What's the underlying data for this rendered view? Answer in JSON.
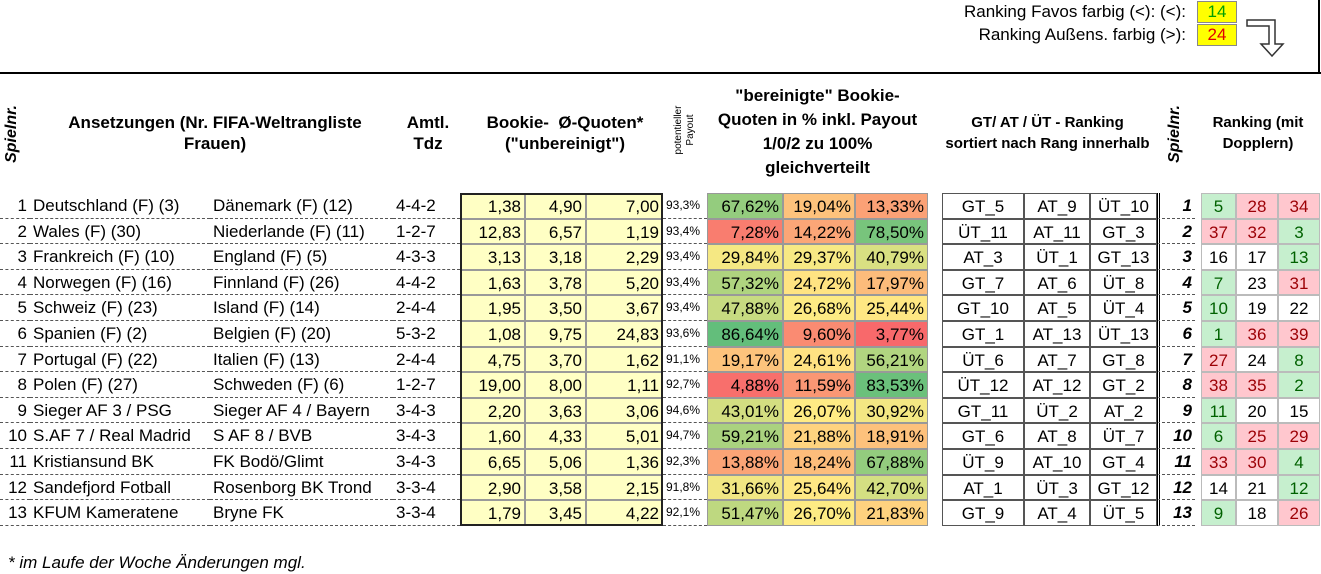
{
  "header": {
    "favos_label": "Ranking Favos farbig (<):  (<):",
    "favos_value": "14",
    "aussens_label": "Ranking Außens. farbig (>):",
    "aussens_value": "24"
  },
  "table": {
    "headers": {
      "nr": "Spielnr.",
      "matches": "Ansetzungen (Nr. FIFA-Weltrangliste Frauen)",
      "tdz": "Amtl. Tdz",
      "quotes": "Bookie-  Ø-Quoten* (\"unbereinigt\")",
      "payout": "potentieller Payout",
      "adjusted": "\"bereinigte\" Bookie-Quoten in % inkl. Payout 1/0/2 zu 100% gleichverteilt",
      "ranking": "GT/ AT / ÜT - Ranking sortiert nach Rang innerhalb",
      "nr2": "Spielnr.",
      "doubles": "Ranking (mit Dopplern)"
    },
    "rows": [
      [
        "1",
        "Deutschland (F) (3)",
        "Dänemark (F) (12)",
        "4-4-2",
        "1,38",
        "4,90",
        "7,00",
        "93,3%",
        "67,62%",
        "19,04%",
        "13,33%",
        "GT_5",
        "AT_9",
        "ÜT_10",
        "1",
        "5",
        "28",
        "34"
      ],
      [
        "2",
        "Wales (F) (30)",
        "Niederlande (F) (11)",
        "1-2-7",
        "12,83",
        "6,57",
        "1,19",
        "93,4%",
        "7,28%",
        "14,22%",
        "78,50%",
        "ÜT_11",
        "AT_11",
        "GT_3",
        "2",
        "37",
        "32",
        "3"
      ],
      [
        "3",
        "Frankreich (F) (10)",
        "England (F) (5)",
        "4-3-3",
        "3,13",
        "3,18",
        "2,29",
        "93,4%",
        "29,84%",
        "29,37%",
        "40,79%",
        "AT_3",
        "ÜT_1",
        "GT_13",
        "3",
        "16",
        "17",
        "13"
      ],
      [
        "4",
        "Norwegen (F) (16)",
        "Finnland (F) (26)",
        "4-4-2",
        "1,63",
        "3,78",
        "5,20",
        "93,4%",
        "57,32%",
        "24,72%",
        "17,97%",
        "GT_7",
        "AT_6",
        "ÜT_8",
        "4",
        "7",
        "23",
        "31"
      ],
      [
        "5",
        "Schweiz (F) (23)",
        "Island (F) (14)",
        "2-4-4",
        "1,95",
        "3,50",
        "3,67",
        "93,4%",
        "47,88%",
        "26,68%",
        "25,44%",
        "GT_10",
        "AT_5",
        "ÜT_4",
        "5",
        "10",
        "19",
        "22"
      ],
      [
        "6",
        "Spanien (F) (2)",
        "Belgien (F) (20)",
        "5-3-2",
        "1,08",
        "9,75",
        "24,83",
        "93,6%",
        "86,64%",
        "9,60%",
        "3,77%",
        "GT_1",
        "AT_13",
        "ÜT_13",
        "6",
        "1",
        "36",
        "39"
      ],
      [
        "7",
        "Portugal (F) (22)",
        "Italien (F) (13)",
        "2-4-4",
        "4,75",
        "3,70",
        "1,62",
        "91,1%",
        "19,17%",
        "24,61%",
        "56,21%",
        "ÜT_6",
        "AT_7",
        "GT_8",
        "7",
        "27",
        "24",
        "8"
      ],
      [
        "8",
        "Polen (F) (27)",
        "Schweden (F) (6)",
        "1-2-7",
        "19,00",
        "8,00",
        "1,11",
        "92,7%",
        "4,88%",
        "11,59%",
        "83,53%",
        "ÜT_12",
        "AT_12",
        "GT_2",
        "8",
        "38",
        "35",
        "2"
      ],
      [
        "9",
        "Sieger AF 3 / PSG",
        "Sieger AF 4 / Bayern",
        "3-4-3",
        "2,20",
        "3,63",
        "3,06",
        "94,6%",
        "43,01%",
        "26,07%",
        "30,92%",
        "GT_11",
        "ÜT_2",
        "AT_2",
        "9",
        "11",
        "20",
        "15"
      ],
      [
        "10",
        "S.AF 7 / Real Madrid",
        "S AF 8 / BVB",
        "3-4-3",
        "1,60",
        "4,33",
        "5,01",
        "94,7%",
        "59,21%",
        "21,88%",
        "18,91%",
        "GT_6",
        "AT_8",
        "ÜT_7",
        "10",
        "6",
        "25",
        "29"
      ],
      [
        "11",
        "Kristiansund BK",
        "FK Bodö/Glimt",
        "3-4-3",
        "6,65",
        "5,06",
        "1,36",
        "92,3%",
        "13,88%",
        "18,24%",
        "67,88%",
        "ÜT_9",
        "AT_10",
        "GT_4",
        "11",
        "33",
        "30",
        "4"
      ],
      [
        "12",
        "Sandefjord Fotball",
        "Rosenborg BK Trond",
        "3-3-4",
        "2,90",
        "3,58",
        "2,15",
        "91,8%",
        "31,66%",
        "25,64%",
        "42,70%",
        "AT_1",
        "ÜT_3",
        "GT_12",
        "12",
        "14",
        "21",
        "12"
      ],
      [
        "13",
        "KFUM Kameratene",
        "Bryne FK",
        "3-3-4",
        "1,79",
        "3,45",
        "4,22",
        "92,1%",
        "51,47%",
        "26,70%",
        "21,83%",
        "GT_9",
        "AT_4",
        "ÜT_5",
        "13",
        "9",
        "18",
        "26"
      ]
    ]
  },
  "footnote": "* im Laufe der Woche Änderungen mgl."
}
